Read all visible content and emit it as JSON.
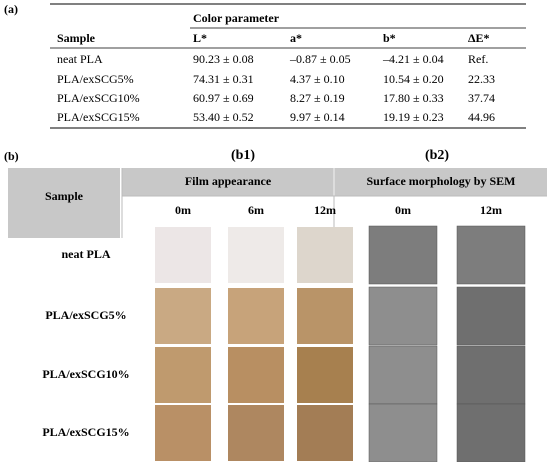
{
  "panel_a": {
    "label": "(a)",
    "table": {
      "group_header": "Color parameter",
      "columns": [
        "Sample",
        "L*",
        "a*",
        "b*",
        "ΔE*"
      ],
      "rows": [
        [
          "neat PLA",
          "90.23 ± 0.08",
          "–0.87 ± 0.05",
          "–4.21 ± 0.04",
          "Ref."
        ],
        [
          "PLA/exSCG5%",
          "74.31 ± 0.31",
          "4.37 ± 0.10",
          "10.54 ± 0.20",
          "22.33"
        ],
        [
          "PLA/exSCG10%",
          "60.97 ± 0.69",
          "8.27 ± 0.19",
          "17.80 ± 0.33",
          "37.74"
        ],
        [
          "PLA/exSCG15%",
          "53.40 ± 0.52",
          "9.97 ± 0.14",
          "19.19 ± 0.23",
          "44.96"
        ]
      ]
    }
  },
  "panel_b": {
    "label": "(b)",
    "b1": "(b1)",
    "b2": "(b2)",
    "header": {
      "sample": "Sample",
      "film": "Film appearance",
      "sem": "Surface morphology by SEM"
    },
    "film_times": [
      "0m",
      "6m",
      "12m"
    ],
    "sem_times": [
      "0m",
      "12m"
    ],
    "rows": [
      "neat PLA",
      "PLA/exSCG5%",
      "PLA/exSCG10%",
      "PLA/exSCG15%"
    ]
  }
}
